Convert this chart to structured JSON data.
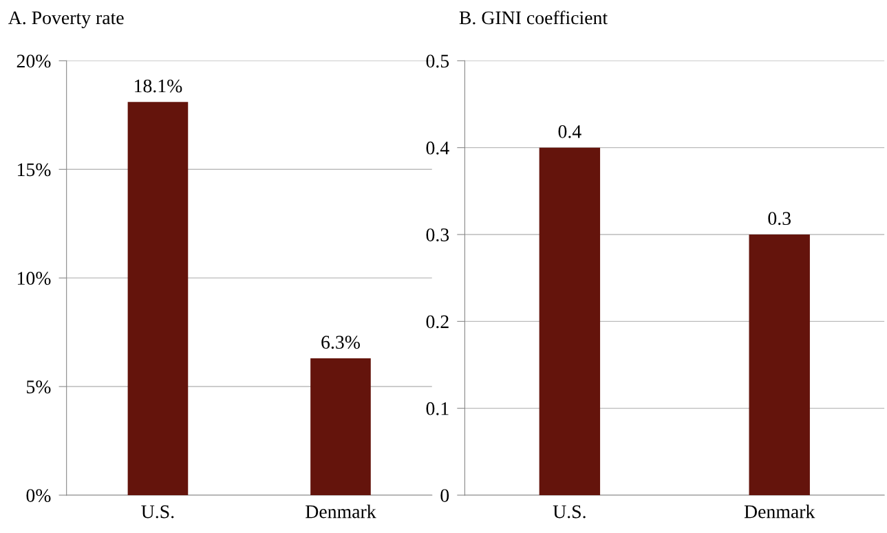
{
  "chart_data": [
    {
      "type": "bar",
      "title": "A. Poverty rate",
      "categories": [
        "U.S.",
        "Denmark"
      ],
      "values": [
        18.1,
        6.3
      ],
      "value_labels": [
        "18.1%",
        "6.3%"
      ],
      "color": "#64140c",
      "ylim": [
        0,
        20
      ],
      "yticks": [
        {
          "value": 0,
          "label": "0%"
        },
        {
          "value": 5,
          "label": "5%"
        },
        {
          "value": 10,
          "label": "10%"
        },
        {
          "value": 15,
          "label": "15%"
        },
        {
          "value": 20,
          "label": "20%"
        }
      ],
      "grid": "y",
      "legend": false
    },
    {
      "type": "bar",
      "title": "B. GINI coefficient",
      "categories": [
        "U.S.",
        "Denmark"
      ],
      "values": [
        0.4,
        0.3
      ],
      "data_labels": true,
      "color": "#64140c",
      "ylim": [
        0,
        0.5
      ],
      "yticks": [
        0,
        0.1,
        0.2,
        0.3,
        0.4,
        0.5
      ],
      "grid": "y",
      "legend": false
    }
  ]
}
